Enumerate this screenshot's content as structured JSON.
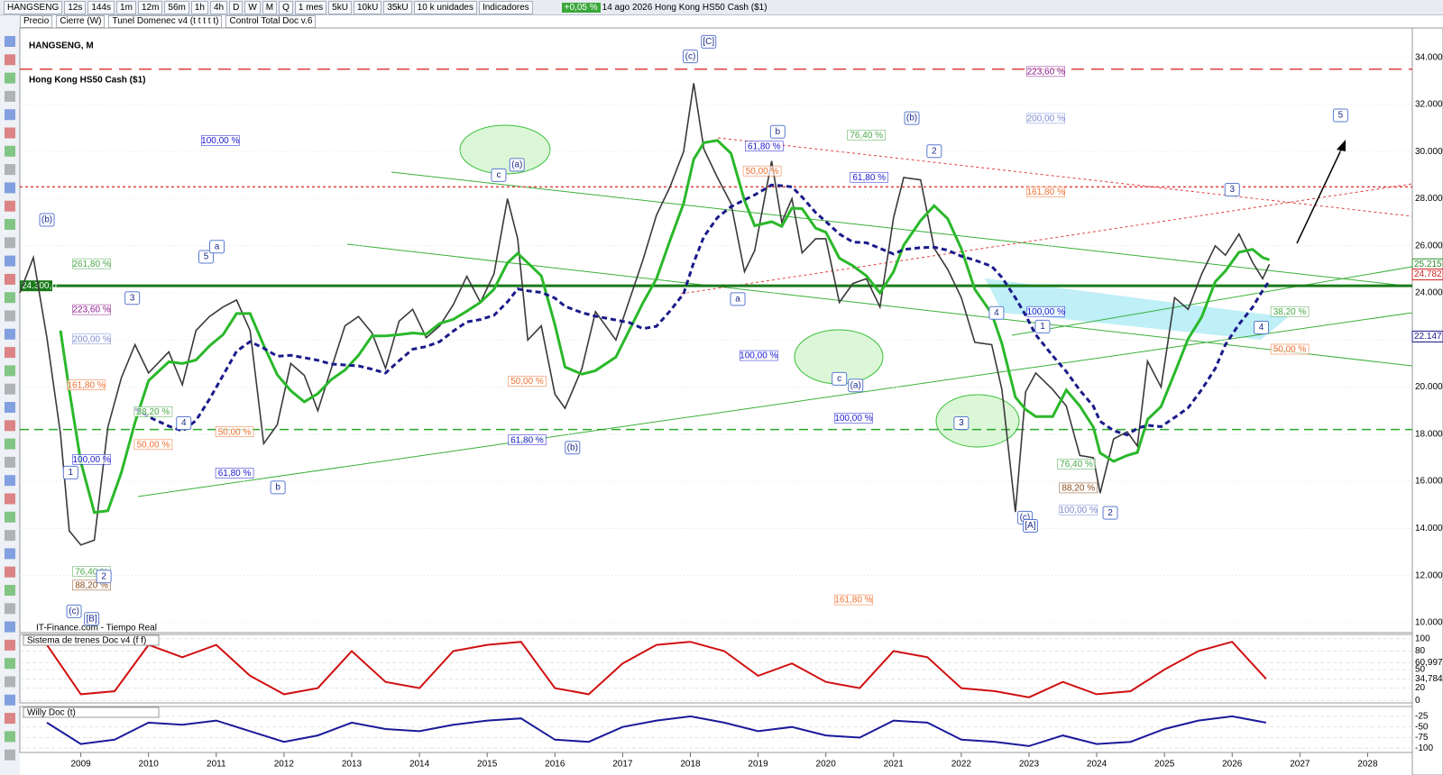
{
  "toolbar": {
    "symbol": "HANGSENG",
    "buttons": [
      "12s",
      "144s",
      "1m",
      "12m",
      "56m",
      "1h",
      "4h",
      "D",
      "W",
      "M",
      "Q",
      "1 mes",
      "5kU",
      "10kU",
      "35kU",
      "10 k unidades",
      "Indicadores"
    ],
    "change": "+0,05 %",
    "quote": "14 ago 2026 Hong Kong HS50 Cash ($1)",
    "layers": [
      "Precio",
      "Cierre (W)",
      "Tunel Domenec v4 (t t t t t)",
      "Control Total Doc v.6"
    ]
  },
  "chart_data": [
    {
      "type": "line",
      "title": "HANGSENG, M",
      "subtitle": "Hong Kong HS50 Cash ($1)",
      "source": "IT-Finance.com - Tiempo Real",
      "xlim": [
        2008.1,
        2028.66
      ],
      "xticks": [
        2009,
        2010,
        2011,
        2012,
        2013,
        2014,
        2015,
        2016,
        2017,
        2018,
        2019,
        2020,
        2021,
        2022,
        2023,
        2024,
        2025,
        2026,
        2027,
        2028
      ],
      "ylim": [
        9576,
        35250
      ],
      "yticks": [
        {
          "value": 34000,
          "label": "34.000"
        },
        {
          "value": 32000,
          "label": "32.000"
        },
        {
          "value": 30000,
          "label": "30.000"
        },
        {
          "value": 28000,
          "label": "28.000"
        },
        {
          "value": 26000,
          "label": "26.000"
        },
        {
          "value": 24000,
          "label": "24.000"
        },
        {
          "value": 22000,
          "label": "22.000"
        },
        {
          "value": 20000,
          "label": "20.000"
        },
        {
          "value": 18000,
          "label": "18.000"
        },
        {
          "value": 16000,
          "label": "16.000"
        },
        {
          "value": 14000,
          "label": "14.000"
        },
        {
          "value": 12000,
          "label": "12.000"
        },
        {
          "value": 10000,
          "label": "10.000"
        }
      ],
      "x": [
        2008.1,
        2008.3,
        2008.5,
        2008.7,
        2008.83,
        2009.0,
        2009.2,
        2009.4,
        2009.6,
        2009.8,
        2010.0,
        2010.3,
        2010.5,
        2010.7,
        2010.9,
        2011.1,
        2011.3,
        2011.5,
        2011.7,
        2011.9,
        2012.1,
        2012.3,
        2012.5,
        2012.7,
        2012.9,
        2013.1,
        2013.3,
        2013.5,
        2013.7,
        2013.9,
        2014.1,
        2014.3,
        2014.5,
        2014.7,
        2014.9,
        2015.1,
        2015.3,
        2015.45,
        2015.6,
        2015.8,
        2016.0,
        2016.15,
        2016.4,
        2016.6,
        2016.9,
        2017.1,
        2017.3,
        2017.5,
        2017.7,
        2017.9,
        2018.05,
        2018.2,
        2018.4,
        2018.6,
        2018.8,
        2018.95,
        2019.2,
        2019.35,
        2019.5,
        2019.65,
        2019.85,
        2020.0,
        2020.2,
        2020.4,
        2020.6,
        2020.8,
        2021.0,
        2021.15,
        2021.4,
        2021.6,
        2021.8,
        2022.0,
        2022.2,
        2022.45,
        2022.6,
        2022.8,
        2022.95,
        2023.1,
        2023.35,
        2023.55,
        2023.75,
        2023.95,
        2024.05,
        2024.25,
        2024.45,
        2024.6,
        2024.75,
        2024.95,
        2025.15,
        2025.35,
        2025.55,
        2025.75,
        2025.9,
        2026.1,
        2026.3,
        2026.45,
        2026.55
      ],
      "series": [
        {
          "color": "#3a3a3a",
          "values": [
            24000,
            25500,
            22100,
            18000,
            13900,
            13300,
            13500,
            18300,
            20400,
            21800,
            20600,
            21500,
            20100,
            22400,
            23000,
            23400,
            23700,
            22400,
            17600,
            18400,
            21000,
            20500,
            19000,
            20800,
            22600,
            23000,
            22300,
            20800,
            22800,
            23300,
            22100,
            22600,
            23500,
            24700,
            23600,
            24800,
            28000,
            26300,
            22000,
            22600,
            19700,
            19100,
            20800,
            23200,
            22000,
            23700,
            25400,
            27300,
            28500,
            30000,
            32900,
            30100,
            28900,
            27800,
            24900,
            25800,
            29600,
            27000,
            28000,
            25700,
            26300,
            26300,
            23600,
            24400,
            24600,
            23400,
            27200,
            28900,
            28800,
            25900,
            25000,
            23800,
            21900,
            21800,
            19900,
            14700,
            19800,
            20600,
            19900,
            19200,
            17100,
            17000,
            15500,
            17800,
            18100,
            17500,
            21100,
            20000,
            23800,
            23300,
            24800,
            26000,
            25600,
            26500,
            25300,
            24600,
            25215
          ]
        }
      ],
      "levels": [
        {
          "value": 24300,
          "color": "#1a7a1a",
          "dash": "none",
          "label": "24.300,0"
        },
        {
          "value": 33500,
          "color": "#e04040",
          "dash": "14 8"
        },
        {
          "value": 28500,
          "color": "#e04040",
          "dash": "3 3"
        },
        {
          "value": 18200,
          "color": "#2aa82a",
          "dash": "10 6"
        }
      ],
      "price_tags": [
        {
          "value": 25215.6,
          "label": "25.215,6",
          "color": "#2a8a2a"
        },
        {
          "value": 24782.4,
          "label": "24.782,4",
          "color": "#d02020"
        },
        {
          "value": 22147.1,
          "label": "22.147,1",
          "color": "#1a1a8a"
        }
      ],
      "annotations": [
        {
          "text": "(b)",
          "x": 2008.5,
          "y": 27100
        },
        {
          "text": "(c)",
          "x": 2008.9,
          "y": 10480
        },
        {
          "text": "[B]",
          "x": 2009.16,
          "y": 10160
        },
        {
          "text": "1",
          "x": 2008.85,
          "y": 16370
        },
        {
          "text": "2",
          "x": 2009.34,
          "y": 11960
        },
        {
          "text": "3",
          "x": 2009.76,
          "y": 23780
        },
        {
          "text": "4",
          "x": 2010.52,
          "y": 18470
        },
        {
          "text": "5",
          "x": 2010.85,
          "y": 25530
        },
        {
          "text": "a",
          "x": 2011.01,
          "y": 25960
        },
        {
          "text": "b",
          "x": 2011.91,
          "y": 15740
        },
        {
          "text": "c",
          "x": 2015.17,
          "y": 29000
        },
        {
          "text": "(a)",
          "x": 2015.44,
          "y": 29440
        },
        {
          "text": "(b)",
          "x": 2016.26,
          "y": 17430
        },
        {
          "text": "(c)",
          "x": 2018.0,
          "y": 34040
        },
        {
          "text": "[C]",
          "x": 2018.27,
          "y": 34660
        },
        {
          "text": "b",
          "x": 2019.29,
          "y": 30840
        },
        {
          "text": "a",
          "x": 2018.7,
          "y": 23740
        },
        {
          "text": "c",
          "x": 2020.2,
          "y": 20350
        },
        {
          "text": "(a)",
          "x": 2020.44,
          "y": 20070
        },
        {
          "text": "(b)",
          "x": 2021.27,
          "y": 31420
        },
        {
          "text": "2",
          "x": 2021.6,
          "y": 30020
        },
        {
          "text": "3",
          "x": 2022.0,
          "y": 18470
        },
        {
          "text": "4",
          "x": 2022.52,
          "y": 23150
        },
        {
          "text": "1",
          "x": 2023.2,
          "y": 22570
        },
        {
          "text": "(c)",
          "x": 2022.94,
          "y": 14460
        },
        {
          "text": "[A]",
          "x": 2023.02,
          "y": 14110
        },
        {
          "text": "2",
          "x": 2024.2,
          "y": 14660
        },
        {
          "text": "3",
          "x": 2026.0,
          "y": 28380
        },
        {
          "text": "4",
          "x": 2026.43,
          "y": 22530
        },
        {
          "text": "5",
          "x": 2027.6,
          "y": 31540
        }
      ],
      "fib_labels": [
        {
          "text": "100,00 %",
          "x": 2011.06,
          "y": 30450,
          "color": "#1a1ad0"
        },
        {
          "text": "261,80 %",
          "x": 2009.16,
          "y": 25220,
          "color": "#4aa84a"
        },
        {
          "text": "223,60 %",
          "x": 2009.16,
          "y": 23270,
          "color": "#8a1a8a"
        },
        {
          "text": "200,00 %",
          "x": 2009.16,
          "y": 22020,
          "color": "#7a8ad0"
        },
        {
          "text": "161,80 %",
          "x": 2009.08,
          "y": 20070,
          "color": "#f07030"
        },
        {
          "text": "100,00 %",
          "x": 2009.16,
          "y": 16910,
          "color": "#1a1ad0"
        },
        {
          "text": "38,20 %",
          "x": 2010.07,
          "y": 18940,
          "color": "#4aa84a"
        },
        {
          "text": "50,00 %",
          "x": 2010.07,
          "y": 17540,
          "color": "#f07030"
        },
        {
          "text": "50,00 %",
          "x": 2011.27,
          "y": 18080,
          "color": "#f07030"
        },
        {
          "text": "61,80 %",
          "x": 2011.27,
          "y": 16330,
          "color": "#1a1ad0"
        },
        {
          "text": "76,40 %",
          "x": 2009.16,
          "y": 12150,
          "color": "#4aa84a"
        },
        {
          "text": "88,20 %",
          "x": 2009.16,
          "y": 11570,
          "color": "#8a4a1a"
        },
        {
          "text": "50,00 %",
          "x": 2015.59,
          "y": 20230,
          "color": "#f07030"
        },
        {
          "text": "61,80 %",
          "x": 2015.59,
          "y": 17740,
          "color": "#1a1ad0"
        },
        {
          "text": "100,00 %",
          "x": 2019.01,
          "y": 21320,
          "color": "#1a1ad0"
        },
        {
          "text": "61,80 %",
          "x": 2019.09,
          "y": 30210,
          "color": "#1a1ad0"
        },
        {
          "text": "50,00 %",
          "x": 2019.06,
          "y": 29160,
          "color": "#f07030"
        },
        {
          "text": "76,40 %",
          "x": 2020.6,
          "y": 30680,
          "color": "#4aa84a"
        },
        {
          "text": "61,80 %",
          "x": 2020.64,
          "y": 28890,
          "color": "#1a1ad0"
        },
        {
          "text": "100,00 %",
          "x": 2020.41,
          "y": 18670,
          "color": "#1a1ad0"
        },
        {
          "text": "161,80 %",
          "x": 2020.41,
          "y": 10950,
          "color": "#f07030"
        },
        {
          "text": "223,60 %",
          "x": 2023.25,
          "y": 33380,
          "color": "#8a1a8a"
        },
        {
          "text": "200,00 %",
          "x": 2023.25,
          "y": 31390,
          "color": "#7a8ad0"
        },
        {
          "text": "161,80 %",
          "x": 2023.25,
          "y": 28270,
          "color": "#f07030"
        },
        {
          "text": "100,00 %",
          "x": 2023.25,
          "y": 23190,
          "color": "#1a1ad0"
        },
        {
          "text": "38,20 %",
          "x": 2026.85,
          "y": 23190,
          "color": "#4aa84a"
        },
        {
          "text": "50,00 %",
          "x": 2026.85,
          "y": 21590,
          "color": "#f07030"
        },
        {
          "text": "76,40 %",
          "x": 2023.7,
          "y": 16720,
          "color": "#4aa84a"
        },
        {
          "text": "88,20 %",
          "x": 2023.73,
          "y": 15700,
          "color": "#8a4a1a"
        },
        {
          "text": "100,00 %",
          "x": 2023.73,
          "y": 14770,
          "color": "#7a8ad0"
        }
      ]
    },
    {
      "type": "line",
      "title": "Sistema de trenes Doc v4 (f f)",
      "ylim": [
        -4,
        107
      ],
      "yticks": [
        100,
        80,
        {
          "value": 60.997,
          "label": "60,997"
        },
        50,
        {
          "value": 34.784,
          "label": "34,784"
        },
        20,
        0
      ],
      "x": [
        2008.5,
        2009,
        2009.5,
        2010,
        2010.5,
        2011,
        2011.5,
        2012,
        2012.5,
        2013,
        2013.5,
        2014,
        2014.5,
        2015,
        2015.5,
        2016,
        2016.5,
        2017,
        2017.5,
        2018,
        2018.5,
        2019,
        2019.5,
        2020,
        2020.5,
        2021,
        2021.5,
        2022,
        2022.5,
        2023,
        2023.5,
        2024,
        2024.5,
        2025,
        2025.5,
        2026,
        2026.5
      ],
      "series": [
        {
          "color": "#d01010",
          "values": [
            90,
            10,
            15,
            90,
            70,
            90,
            40,
            10,
            20,
            80,
            30,
            20,
            80,
            90,
            95,
            20,
            10,
            60,
            90,
            95,
            80,
            40,
            60,
            30,
            20,
            80,
            70,
            20,
            15,
            5,
            30,
            10,
            15,
            50,
            80,
            95,
            35
          ]
        }
      ]
    },
    {
      "type": "line",
      "title": "Willy Doc (t)",
      "ylim": [
        -110,
        -2
      ],
      "yticks": [
        -25,
        -50,
        -75,
        -100
      ],
      "x": [
        2008.5,
        2009,
        2009.5,
        2010,
        2010.5,
        2011,
        2011.5,
        2012,
        2012.5,
        2013,
        2013.5,
        2014,
        2014.5,
        2015,
        2015.5,
        2016,
        2016.5,
        2017,
        2017.5,
        2018,
        2018.5,
        2019,
        2019.5,
        2020,
        2020.5,
        2021,
        2021.5,
        2022,
        2022.5,
        2023,
        2023.5,
        2024,
        2024.5,
        2025,
        2025.5,
        2026,
        2026.5
      ],
      "series": [
        {
          "color": "#1a1a9a",
          "values": [
            -40,
            -90,
            -80,
            -40,
            -45,
            -35,
            -60,
            -85,
            -70,
            -40,
            -55,
            -60,
            -45,
            -35,
            -30,
            -80,
            -85,
            -50,
            -35,
            -25,
            -40,
            -60,
            -50,
            -70,
            -75,
            -35,
            -40,
            -80,
            -85,
            -95,
            -70,
            -90,
            -85,
            -55,
            -35,
            -25,
            -40
          ]
        }
      ]
    }
  ]
}
